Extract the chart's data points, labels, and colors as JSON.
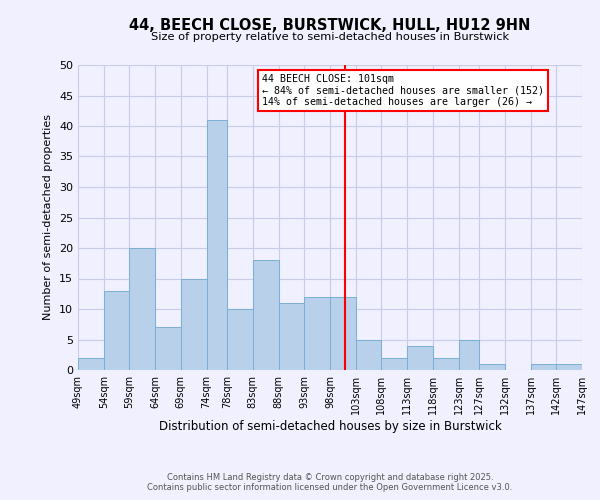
{
  "title_line1": "44, BEECH CLOSE, BURSTWICK, HULL, HU12 9HN",
  "title_line2": "Size of property relative to semi-detached houses in Burstwick",
  "xlabel": "Distribution of semi-detached houses by size in Burstwick",
  "ylabel": "Number of semi-detached properties",
  "bar_edges": [
    49,
    54,
    59,
    64,
    69,
    74,
    78,
    83,
    88,
    93,
    98,
    103,
    108,
    113,
    118,
    123,
    127,
    132,
    137,
    142,
    147
  ],
  "bar_heights": [
    2,
    13,
    20,
    7,
    15,
    41,
    10,
    18,
    11,
    12,
    12,
    5,
    2,
    4,
    2,
    5,
    1,
    0,
    1,
    1
  ],
  "bar_color": "#b8d0ea",
  "bar_edge_color": "#7aafd4",
  "property_line_x": 101,
  "property_line_color": "red",
  "annotation_title": "44 BEECH CLOSE: 101sqm",
  "annotation_line1": "← 84% of semi-detached houses are smaller (152)",
  "annotation_line2": "14% of semi-detached houses are larger (26) →",
  "annotation_box_color": "white",
  "annotation_box_edge": "red",
  "ylim": [
    0,
    50
  ],
  "yticks": [
    0,
    5,
    10,
    15,
    20,
    25,
    30,
    35,
    40,
    45,
    50
  ],
  "tick_labels": [
    "49sqm",
    "54sqm",
    "59sqm",
    "64sqm",
    "69sqm",
    "74sqm",
    "78sqm",
    "83sqm",
    "88sqm",
    "93sqm",
    "98sqm",
    "103sqm",
    "108sqm",
    "113sqm",
    "118sqm",
    "123sqm",
    "127sqm",
    "132sqm",
    "137sqm",
    "142sqm",
    "147sqm"
  ],
  "footer_line1": "Contains HM Land Registry data © Crown copyright and database right 2025.",
  "footer_line2": "Contains public sector information licensed under the Open Government Licence v3.0.",
  "bg_color": "#f0f0ff",
  "grid_color": "#c8cce8"
}
